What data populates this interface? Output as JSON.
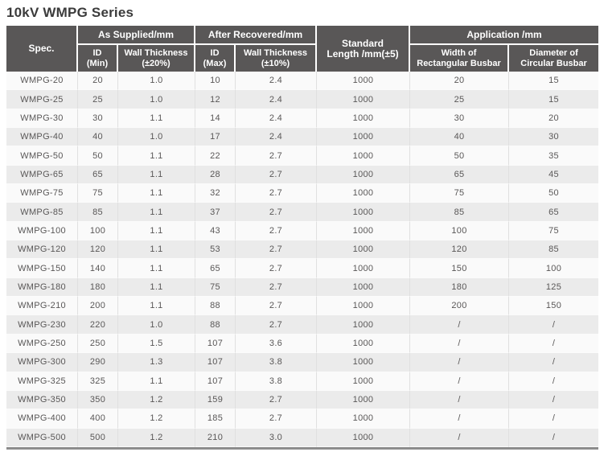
{
  "page_title": "10kV WMPG Series",
  "colors": {
    "title_text": "#3b3b3b",
    "header_bg": "#595757",
    "header_text": "#ffffff",
    "row_light": "#fafafa",
    "row_dark": "#ebebeb",
    "cell_text": "#595757",
    "column_divider": "#e0e0e0",
    "table_bottom_border": "#8c8c8c"
  },
  "table": {
    "header": {
      "spec": "Spec.",
      "as_supplied_group": "As Supplied/mm",
      "after_recovered_group": "After Recovered/mm",
      "application_group": "Application /mm",
      "standard_length_line1": "Standard",
      "standard_length_line2": "Length /mm(±5)",
      "id_min_line1": "ID",
      "id_min_line2": "(Min)",
      "wall_20_line1": "Wall Thickness",
      "wall_20_line2": "(±20%)",
      "id_max_line1": "ID",
      "id_max_line2": "(Max)",
      "wall_10_line1": "Wall Thickness",
      "wall_10_line2": "(±10%)",
      "width_rect_line1": "Width of",
      "width_rect_line2": "Rectangular Busbar",
      "dia_circ_line1": "Diameter of",
      "dia_circ_line2": "Circular Busbar"
    },
    "rows": [
      [
        "WMPG-20",
        "20",
        "1.0",
        "10",
        "2.4",
        "1000",
        "20",
        "15"
      ],
      [
        "WMPG-25",
        "25",
        "1.0",
        "12",
        "2.4",
        "1000",
        "25",
        "15"
      ],
      [
        "WMPG-30",
        "30",
        "1.1",
        "14",
        "2.4",
        "1000",
        "30",
        "20"
      ],
      [
        "WMPG-40",
        "40",
        "1.0",
        "17",
        "2.4",
        "1000",
        "40",
        "30"
      ],
      [
        "WMPG-50",
        "50",
        "1.1",
        "22",
        "2.7",
        "1000",
        "50",
        "35"
      ],
      [
        "WMPG-65",
        "65",
        "1.1",
        "28",
        "2.7",
        "1000",
        "65",
        "45"
      ],
      [
        "WMPG-75",
        "75",
        "1.1",
        "32",
        "2.7",
        "1000",
        "75",
        "50"
      ],
      [
        "WMPG-85",
        "85",
        "1.1",
        "37",
        "2.7",
        "1000",
        "85",
        "65"
      ],
      [
        "WMPG-100",
        "100",
        "1.1",
        "43",
        "2.7",
        "1000",
        "100",
        "75"
      ],
      [
        "WMPG-120",
        "120",
        "1.1",
        "53",
        "2.7",
        "1000",
        "120",
        "85"
      ],
      [
        "WMPG-150",
        "140",
        "1.1",
        "65",
        "2.7",
        "1000",
        "150",
        "100"
      ],
      [
        "WMPG-180",
        "180",
        "1.1",
        "75",
        "2.7",
        "1000",
        "180",
        "125"
      ],
      [
        "WMPG-210",
        "200",
        "1.1",
        "88",
        "2.7",
        "1000",
        "200",
        "150"
      ],
      [
        "WMPG-230",
        "220",
        "1.0",
        "88",
        "2.7",
        "1000",
        "/",
        "/"
      ],
      [
        "WMPG-250",
        "250",
        "1.5",
        "107",
        "3.6",
        "1000",
        "/",
        "/"
      ],
      [
        "WMPG-300",
        "290",
        "1.3",
        "107",
        "3.8",
        "1000",
        "/",
        "/"
      ],
      [
        "WMPG-325",
        "325",
        "1.1",
        "107",
        "3.8",
        "1000",
        "/",
        "/"
      ],
      [
        "WMPG-350",
        "350",
        "1.2",
        "159",
        "2.7",
        "1000",
        "/",
        "/"
      ],
      [
        "WMPG-400",
        "400",
        "1.2",
        "185",
        "2.7",
        "1000",
        "/",
        "/"
      ],
      [
        "WMPG-500",
        "500",
        "1.2",
        "210",
        "3.0",
        "1000",
        "/",
        "/"
      ]
    ]
  }
}
